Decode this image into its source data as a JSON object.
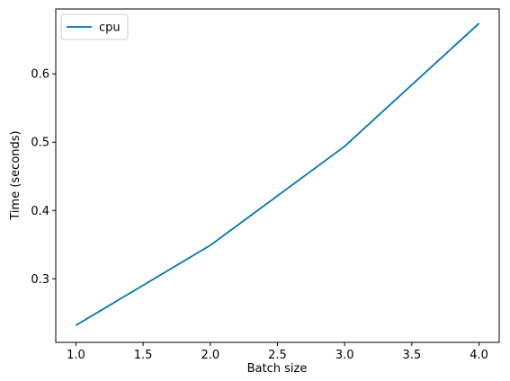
{
  "chart_data": {
    "type": "line",
    "x_label": "Batch size",
    "y_label": "Time (seconds)",
    "x": [
      1,
      2,
      3,
      4
    ],
    "series": [
      {
        "name": "cpu",
        "color": "#0173b2",
        "values": [
          0.232,
          0.349,
          0.494,
          0.674
        ]
      }
    ],
    "xlim": [
      0.85,
      4.15
    ],
    "ylim": [
      0.207,
      0.695
    ],
    "xticks": [
      {
        "value": 1,
        "label": "1.0"
      },
      1.5,
      {
        "value": 2,
        "label": "2.0"
      },
      2.5,
      {
        "value": 3,
        "label": "3.0"
      },
      3.5,
      {
        "value": 4,
        "label": "4.0"
      }
    ],
    "yticks": [
      0.3,
      0.4,
      0.5,
      0.6
    ],
    "legend": "upper left"
  }
}
